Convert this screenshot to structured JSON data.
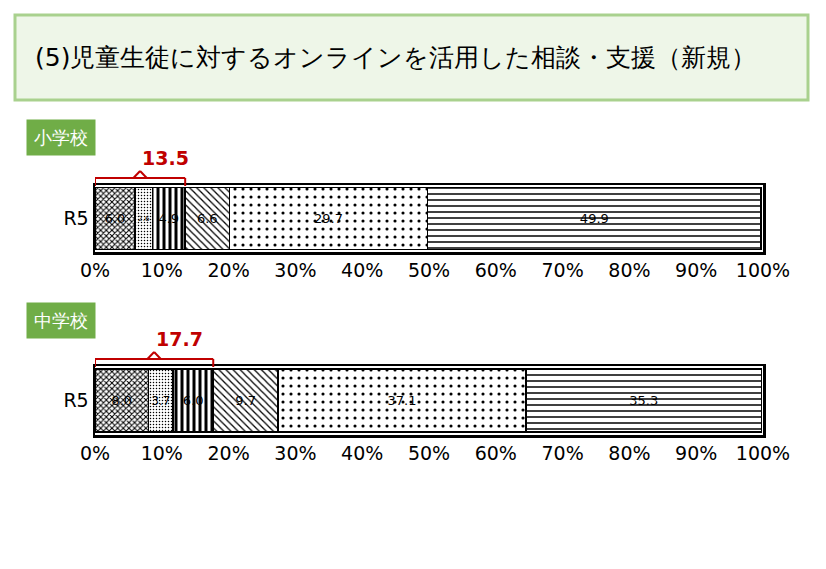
{
  "header": {
    "title": "(5)児童生徒に対するオンラインを活用した相談・支援（新規）"
  },
  "chart_data": [
    {
      "type": "bar",
      "title": "小学校",
      "orientation": "horizontal",
      "stacked": true,
      "data_labels": true,
      "grid": false,
      "categories": [
        "R5"
      ],
      "xlim": [
        0,
        100
      ],
      "xticks": [
        {
          "value": 0,
          "label": "0%"
        },
        {
          "value": 10,
          "label": "10%"
        },
        {
          "value": 20,
          "label": "20%"
        },
        {
          "value": 30,
          "label": "30%"
        },
        {
          "value": 40,
          "label": "40%"
        },
        {
          "value": 50,
          "label": "50%"
        },
        {
          "value": 60,
          "label": "60%"
        },
        {
          "value": 70,
          "label": "70%"
        },
        {
          "value": 80,
          "label": "80%"
        },
        {
          "value": 90,
          "label": "90%"
        },
        {
          "value": 100,
          "label": "100%"
        }
      ],
      "bracket": {
        "value": 13.5,
        "label": "13.5"
      },
      "series": [
        {
          "color": "#000000",
          "marker": "crosshatch",
          "values": [
            6.0
          ],
          "value_labels": [
            "6.0"
          ]
        },
        {
          "color": "#000000",
          "marker": "fine_dots",
          "values": [
            2.6
          ],
          "value_labels": [
            "2.6"
          ]
        },
        {
          "color": "#000000",
          "marker": "vertical_stripes",
          "values": [
            4.9
          ],
          "value_labels": [
            "4.9"
          ]
        },
        {
          "color": "#000000",
          "marker": "diagonal",
          "values": [
            6.6
          ],
          "value_labels": [
            "6.6"
          ]
        },
        {
          "color": "#000000",
          "marker": "dots",
          "values": [
            29.7
          ],
          "value_labels": [
            "29.7"
          ]
        },
        {
          "color": "#000000",
          "marker": "wave",
          "values": [
            49.9
          ],
          "value_labels": [
            "49.9"
          ]
        }
      ]
    },
    {
      "type": "bar",
      "title": "中学校",
      "orientation": "horizontal",
      "stacked": true,
      "data_labels": true,
      "grid": false,
      "categories": [
        "R5"
      ],
      "xlim": [
        0,
        100
      ],
      "xticks": [
        {
          "value": 0,
          "label": "0%"
        },
        {
          "value": 10,
          "label": "10%"
        },
        {
          "value": 20,
          "label": "20%"
        },
        {
          "value": 30,
          "label": "30%"
        },
        {
          "value": 40,
          "label": "40%"
        },
        {
          "value": 50,
          "label": "50%"
        },
        {
          "value": 60,
          "label": "60%"
        },
        {
          "value": 70,
          "label": "70%"
        },
        {
          "value": 80,
          "label": "80%"
        },
        {
          "value": 90,
          "label": "90%"
        },
        {
          "value": 100,
          "label": "100%"
        }
      ],
      "bracket": {
        "value": 17.7,
        "label": "17.7"
      },
      "series": [
        {
          "color": "#000000",
          "marker": "crosshatch",
          "values": [
            8.0
          ],
          "value_labels": [
            "8.0"
          ]
        },
        {
          "color": "#000000",
          "marker": "fine_dots",
          "values": [
            3.7
          ],
          "value_labels": [
            "3.7"
          ]
        },
        {
          "color": "#000000",
          "marker": "vertical_stripes",
          "values": [
            6.0
          ],
          "value_labels": [
            "6.0"
          ]
        },
        {
          "color": "#000000",
          "marker": "diagonal",
          "values": [
            9.7
          ],
          "value_labels": [
            "9.7"
          ]
        },
        {
          "color": "#000000",
          "marker": "dots",
          "values": [
            37.1
          ],
          "value_labels": [
            "37.1"
          ]
        },
        {
          "color": "#000000",
          "marker": "wave",
          "values": [
            35.3
          ],
          "value_labels": [
            "35.3"
          ]
        }
      ]
    }
  ]
}
